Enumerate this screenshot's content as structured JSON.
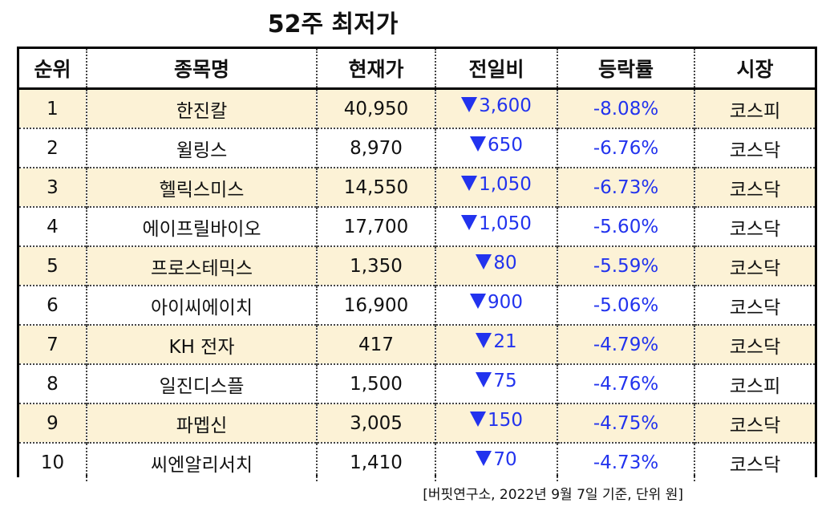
{
  "title": "52주 최저가",
  "table": {
    "headers": [
      "순위",
      "종목명",
      "현재가",
      "전일비",
      "등락률",
      "시장"
    ],
    "rows": [
      {
        "rank": "1",
        "name": "한진칼",
        "price": "40,950",
        "change": "3,600",
        "rate": "-8.08%",
        "market": "코스피"
      },
      {
        "rank": "2",
        "name": "윌링스",
        "price": "8,970",
        "change": "650",
        "rate": "-6.76%",
        "market": "코스닥"
      },
      {
        "rank": "3",
        "name": "헬릭스미스",
        "price": "14,550",
        "change": "1,050",
        "rate": "-6.73%",
        "market": "코스닥"
      },
      {
        "rank": "4",
        "name": "에이프릴바이오",
        "price": "17,700",
        "change": "1,050",
        "rate": "-5.60%",
        "market": "코스닥"
      },
      {
        "rank": "5",
        "name": "프로스테믹스",
        "price": "1,350",
        "change": "80",
        "rate": "-5.59%",
        "market": "코스닥"
      },
      {
        "rank": "6",
        "name": "아이씨에이치",
        "price": "16,900",
        "change": "900",
        "rate": "-5.06%",
        "market": "코스닥"
      },
      {
        "rank": "7",
        "name": "KH 전자",
        "price": "417",
        "change": "21",
        "rate": "-4.79%",
        "market": "코스닥"
      },
      {
        "rank": "8",
        "name": "일진디스플",
        "price": "1,500",
        "change": "75",
        "rate": "-4.76%",
        "market": "코스피"
      },
      {
        "rank": "9",
        "name": "파멥신",
        "price": "3,005",
        "change": "150",
        "rate": "-4.75%",
        "market": "코스닥"
      },
      {
        "rank": "10",
        "name": "씨엔알리서치",
        "price": "1,410",
        "change": "70",
        "rate": "-4.73%",
        "market": "코스닥"
      }
    ]
  },
  "footnote": "[버핏연구소, 2022년 9월 7일 기준, 단위 원]",
  "colors": {
    "row_highlight": "#fcf2d6",
    "down": "#2233ee"
  },
  "icons": {
    "change_direction": "down-triangle-icon"
  }
}
